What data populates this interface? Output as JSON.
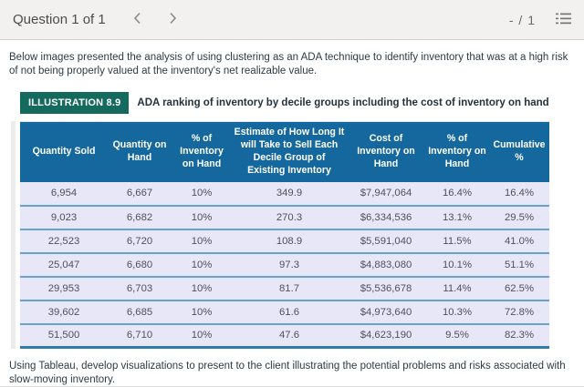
{
  "topbar": {
    "title": "Question 1 of 1",
    "score": "- / 1"
  },
  "intro": "Below images presented the analysis of using clustering as an ADA technique to identify inventory that was at a high risk of not being properly valued at the inventory's net realizable value.",
  "illustration": {
    "badge": "ILLUSTRATION 8.9",
    "caption": "ADA ranking of inventory by decile groups including the cost of inventory on hand"
  },
  "table": {
    "headers": [
      "Quantity Sold",
      "Quantity on Hand",
      "% of Inventory on Hand",
      "Estimate of How Long It will Take to Sell Each Decile Group of Existing Inventory",
      "Cost of Inventory on Hand",
      "% of Inventory on Hand",
      "Cumulative %"
    ],
    "rows": [
      [
        "6,954",
        "6,667",
        "10%",
        "349.9",
        "$7,947,064",
        "16.4%",
        "16.4%"
      ],
      [
        "9,023",
        "6,682",
        "10%",
        "270.3",
        "$6,334,536",
        "13.1%",
        "29.5%"
      ],
      [
        "22,523",
        "6,720",
        "10%",
        "108.9",
        "$5,591,040",
        "11.5%",
        "41.0%"
      ],
      [
        "25,047",
        "6,680",
        "10%",
        "97.3",
        "$4,883,080",
        "10.1%",
        "51.1%"
      ],
      [
        "29,953",
        "6,703",
        "10%",
        "81.7",
        "$5,536,678",
        "11.4%",
        "62.5%"
      ],
      [
        "39,602",
        "6,685",
        "10%",
        "61.6",
        "$4,973,640",
        "10.3%",
        "72.8%"
      ],
      [
        "51,500",
        "6,710",
        "10%",
        "47.6",
        "$4,623,190",
        "9.5%",
        "82.3%"
      ]
    ]
  },
  "outro": "Using Tableau, develop visualizations to present to the client illustrating the potential problems and risks associated with slow-moving inventory.",
  "colors": {
    "table_header_bg": "#15689e",
    "table_row_bg": "#e8e7f8",
    "table_row_border": "#69a2ca",
    "table_bottom_border": "#2d7cab",
    "badge_bg": "#156a5e",
    "topbar_bg": "#f2f1ef",
    "body_text": "#2d3b45"
  }
}
